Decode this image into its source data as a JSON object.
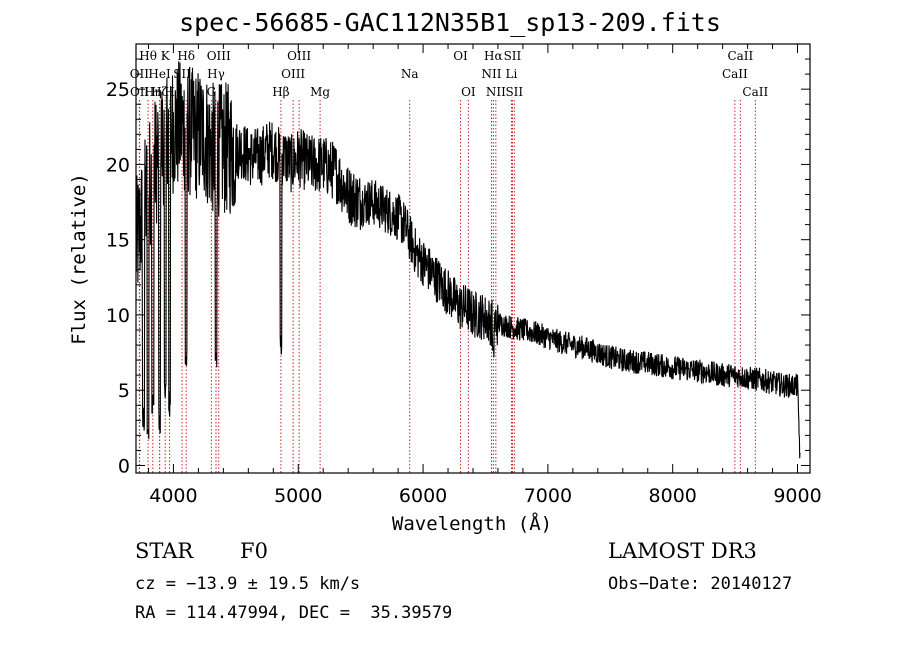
{
  "chart_data": {
    "type": "line",
    "title": "spec-56685-GAC112N35B1_sp13-209.fits",
    "xlabel": "Wavelength (Å)",
    "ylabel": "Flux (relative)",
    "xlim": [
      3700,
      9100
    ],
    "ylim": [
      -0.5,
      28
    ],
    "xticks": [
      4000,
      5000,
      6000,
      7000,
      8000,
      9000
    ],
    "yticks": [
      0,
      5,
      10,
      15,
      20,
      25
    ],
    "spectrum": {
      "name": "flux",
      "anchors_x": [
        3700,
        3750,
        3800,
        3850,
        3900,
        3950,
        4000,
        4050,
        4100,
        4150,
        4200,
        4250,
        4300,
        4350,
        4400,
        4450,
        4500,
        4550,
        4600,
        4650,
        4700,
        4750,
        4800,
        4850,
        4900,
        4950,
        5000,
        5100,
        5200,
        5300,
        5400,
        5500,
        5600,
        5700,
        5800,
        5850,
        5900,
        5950,
        6000,
        6050,
        6100,
        6150,
        6200,
        6250,
        6300,
        6350,
        6400,
        6450,
        6500,
        6550,
        6600,
        6700,
        6800,
        6900,
        7000,
        7100,
        7200,
        7300,
        7400,
        7500,
        7600,
        7800,
        8000,
        8200,
        8400,
        8500,
        8600,
        8700,
        8800,
        8900,
        9000,
        9020
      ],
      "anchors_y": [
        14.5,
        16.5,
        18.5,
        20.0,
        21.5,
        22.0,
        22.5,
        22.5,
        22.5,
        22.0,
        22.0,
        22.0,
        21.0,
        21.0,
        21.0,
        21.0,
        21.0,
        21.0,
        20.5,
        20.5,
        20.5,
        21.0,
        21.0,
        20.5,
        20.5,
        20.0,
        20.5,
        20.0,
        20.0,
        19.5,
        18.0,
        17.5,
        17.5,
        17.0,
        16.5,
        16.0,
        15.0,
        14.0,
        13.5,
        13.0,
        12.5,
        12.0,
        11.5,
        11.0,
        10.5,
        10.5,
        10.0,
        10.0,
        9.8,
        9.5,
        9.5,
        9.2,
        9.0,
        8.8,
        8.5,
        8.2,
        8.0,
        7.8,
        7.5,
        7.2,
        7.0,
        6.8,
        6.5,
        6.3,
        6.0,
        6.0,
        5.8,
        5.7,
        5.5,
        5.3,
        5.3,
        0.5
      ]
    },
    "spectral_lines": [
      {
        "label": "Hθ",
        "wavelength": 3797,
        "row": 0
      },
      {
        "label": "OII",
        "wavelength": 3727,
        "row": 1
      },
      {
        "label": "OII",
        "wavelength": 3729,
        "row": 2
      },
      {
        "label": "Hη",
        "wavelength": 3835,
        "row": 2
      },
      {
        "label": "HeI",
        "wavelength": 3889,
        "row": 1
      },
      {
        "label": "Hζ",
        "wavelength": 3889,
        "row": 2
      },
      {
        "label": "K",
        "wavelength": 3934,
        "row": 0
      },
      {
        "label": "H",
        "wavelength": 3969,
        "row": 2
      },
      {
        "label": "SII",
        "wavelength": 4069,
        "row": 1
      },
      {
        "label": "Hδ",
        "wavelength": 4102,
        "row": 0
      },
      {
        "label": "OIII",
        "wavelength": 4363,
        "row": 0
      },
      {
        "label": "Hγ",
        "wavelength": 4341,
        "row": 1
      },
      {
        "label": "G",
        "wavelength": 4304,
        "row": 2
      },
      {
        "label": "Hβ",
        "wavelength": 4861,
        "row": 2
      },
      {
        "label": "OIII",
        "wavelength": 5007,
        "row": 0
      },
      {
        "label": "OIII",
        "wavelength": 4959,
        "row": 1
      },
      {
        "label": "Mg",
        "wavelength": 5175,
        "row": 2
      },
      {
        "label": "Na",
        "wavelength": 5893,
        "row": 1
      },
      {
        "label": "OI",
        "wavelength": 6300,
        "row": 0
      },
      {
        "label": "OI",
        "wavelength": 6363,
        "row": 2
      },
      {
        "label": "Hα",
        "wavelength": 6563,
        "row": 0
      },
      {
        "label": "NII",
        "wavelength": 6548,
        "row": 1
      },
      {
        "label": "NII",
        "wavelength": 6583,
        "row": 2
      },
      {
        "label": "SII",
        "wavelength": 6716,
        "row": 0
      },
      {
        "label": "Li",
        "wavelength": 6708,
        "row": 1
      },
      {
        "label": "SII",
        "wavelength": 6731,
        "row": 2
      },
      {
        "label": "CaII",
        "wavelength": 8542,
        "row": 0
      },
      {
        "label": "CaII",
        "wavelength": 8498,
        "row": 1
      },
      {
        "label": "CaII",
        "wavelength": 8662,
        "row": 2
      }
    ],
    "colors": {
      "spectrum": "#000000",
      "lines": "#cc2222",
      "axes": "#000000"
    }
  },
  "info": {
    "object_class": "STAR",
    "subclass": "F0",
    "survey": "LAMOST DR3",
    "cz": "cz = −13.9 ± 19.5 km/s",
    "obs_date": "Obs−Date: 20140127",
    "coords": "RA = 114.47994, DEC =  35.39579"
  }
}
